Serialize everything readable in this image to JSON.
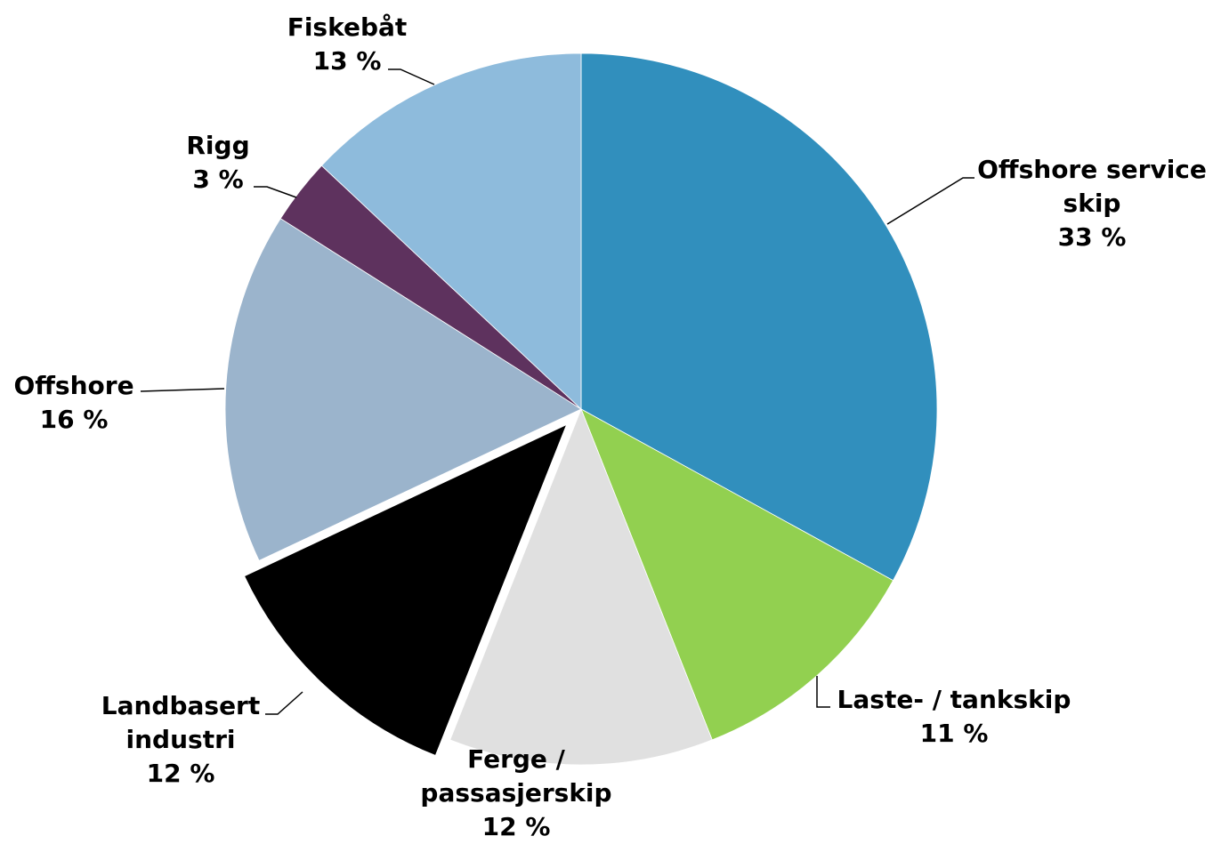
{
  "chart_data": {
    "type": "pie",
    "categories": [
      "Offshore service skip",
      "Laste- / tankskip",
      "Ferge / passasjerskip",
      "Landbasert industri",
      "Offshore",
      "Rigg",
      "Fiskebåt"
    ],
    "values": [
      33,
      11,
      12,
      12,
      16,
      3,
      13
    ],
    "value_labels": [
      "33 %",
      "11 %",
      "12 %",
      "12 %",
      "16 %",
      "3 %",
      "13 %"
    ],
    "colors": [
      "#318fbd",
      "#92d050",
      "#e0e0e0",
      "#000000",
      "#9bb4cc",
      "#5e325e",
      "#8ebbdc"
    ],
    "exploded": [
      "Landbasert industri"
    ]
  }
}
